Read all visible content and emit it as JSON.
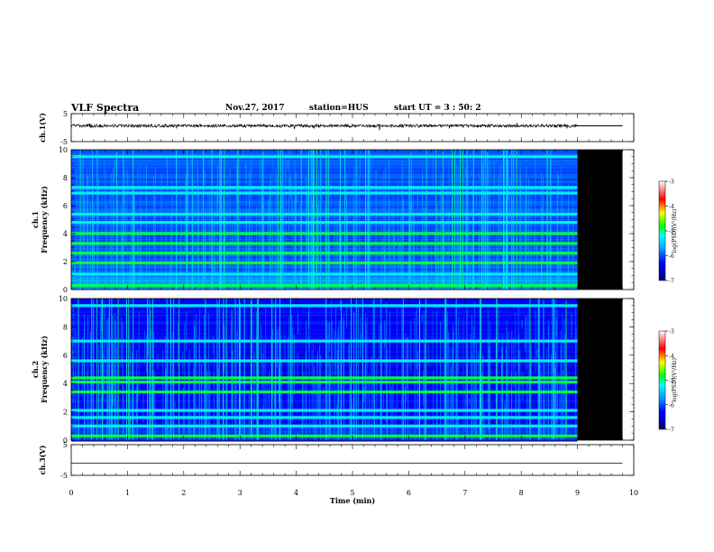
{
  "header": {
    "title": "VLF Spectra",
    "date": "Nov.27, 2017",
    "station": "station=HUS",
    "start": "start  UT =   3 : 50: 2"
  },
  "chart_data": [
    {
      "type": "line",
      "panel": "ch1-waveform",
      "ylabel": "ch.1(V)",
      "ylim": [
        -5,
        5
      ],
      "yticks": [
        "5",
        "-5"
      ],
      "xlim": [
        0,
        10
      ],
      "data_end_min": 9.0,
      "series": [
        {
          "x": [
            0,
            9.0,
            9.8
          ],
          "values": [
            0,
            0,
            0
          ]
        }
      ]
    },
    {
      "type": "heatmap",
      "panel": "ch1-spectrogram",
      "ylabel": "ch.1\nFrequency (kHz)",
      "ylim": [
        0,
        10
      ],
      "yticks": [
        "0",
        "2",
        "4",
        "6",
        "8",
        "10"
      ],
      "xlim": [
        0,
        10
      ],
      "data_end_min": 9.0,
      "colorbar": {
        "label": "log(PSD)(V²/Hz)",
        "ticks": [
          "-3",
          "-4",
          "-5",
          "-6",
          "-7"
        ],
        "range": [
          -7,
          -3
        ]
      },
      "bands_khz": [
        0.3,
        1.1,
        1.9,
        2.6,
        3.3,
        4.0,
        4.8,
        5.4,
        6.9,
        7.3,
        9.5
      ]
    },
    {
      "type": "heatmap",
      "panel": "ch2-spectrogram",
      "ylabel": "ch.2\nFrequency (kHz)",
      "ylim": [
        0,
        10
      ],
      "yticks": [
        "0",
        "2",
        "4",
        "6",
        "8",
        "10"
      ],
      "xlim": [
        0,
        10
      ],
      "data_end_min": 9.0,
      "colorbar": {
        "label": "log(PSD)(V²/Hz)",
        "ticks": [
          "-3",
          "-4",
          "-5",
          "-6",
          "-7"
        ],
        "range": [
          -7,
          -3
        ]
      },
      "bands_khz": [
        0.3,
        1.0,
        1.6,
        2.1,
        3.4,
        4.1,
        4.4,
        5.6,
        7.0,
        9.5
      ]
    },
    {
      "type": "line",
      "panel": "ch3-waveform",
      "ylabel": "ch.3(V)",
      "ylim": [
        -5,
        5
      ],
      "yticks": [
        "5",
        "-5"
      ],
      "xlim": [
        0,
        10
      ],
      "series": [
        {
          "x": [
            0,
            9.8
          ],
          "values": [
            -1,
            -1
          ]
        }
      ]
    }
  ],
  "xaxis": {
    "label": "Time  (min)",
    "ticks": [
      "0",
      "1",
      "2",
      "3",
      "4",
      "5",
      "6",
      "7",
      "8",
      "9",
      "10"
    ]
  }
}
